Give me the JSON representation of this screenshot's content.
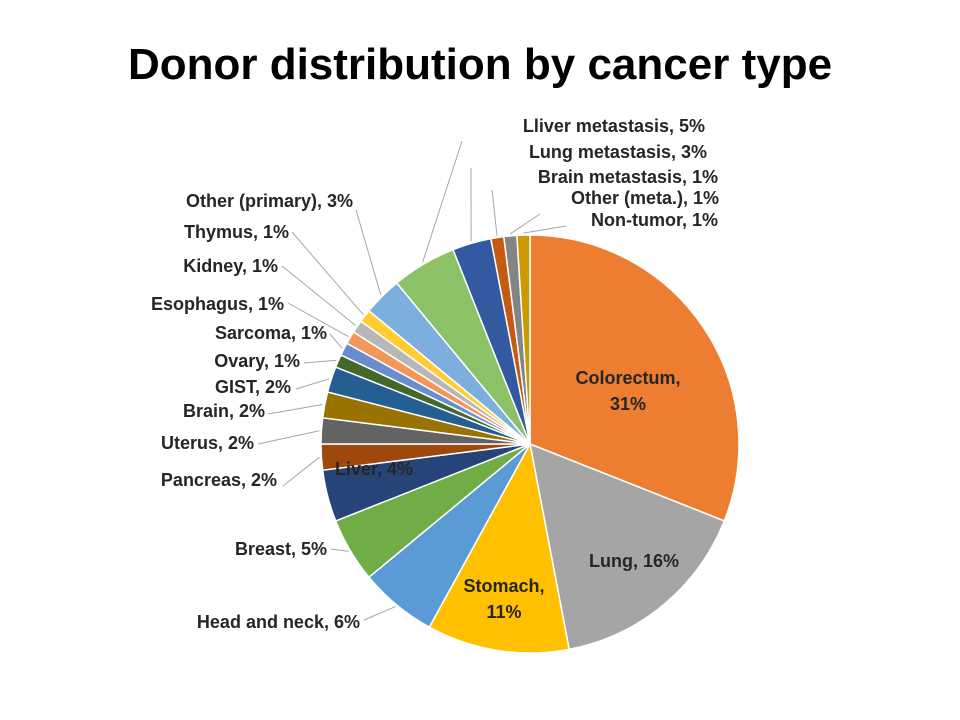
{
  "chart_data": {
    "type": "pie",
    "title": "Donor distribution by cancer type",
    "slices": [
      {
        "name": "Colorectum",
        "value": 31,
        "color": "#ED7D31",
        "label_line1": "Colorectum,",
        "label_line2": "31%"
      },
      {
        "name": "Lung",
        "value": 16,
        "color": "#A5A5A5",
        "label": "Lung, 16%"
      },
      {
        "name": "Stomach",
        "value": 11,
        "color": "#FFC000",
        "label_line1": "Stomach,",
        "label_line2": "11%"
      },
      {
        "name": "Head and neck",
        "value": 6,
        "color": "#5B9BD5",
        "label": "Head and neck, 6%"
      },
      {
        "name": "Breast",
        "value": 5,
        "color": "#70AD47",
        "label": "Breast, 5%"
      },
      {
        "name": "Liver",
        "value": 4,
        "color": "#264478",
        "label": "Liver, 4%"
      },
      {
        "name": "Pancreas",
        "value": 2,
        "color": "#9E480E",
        "label": "Pancreas, 2%"
      },
      {
        "name": "Uterus",
        "value": 2,
        "color": "#636363",
        "label": "Uterus, 2%"
      },
      {
        "name": "Brain",
        "value": 2,
        "color": "#997300",
        "label": "Brain, 2%"
      },
      {
        "name": "GIST",
        "value": 2,
        "color": "#255E91",
        "label": "GIST, 2%"
      },
      {
        "name": "Ovary",
        "value": 1,
        "color": "#43682B",
        "label": "Ovary, 1%"
      },
      {
        "name": "Sarcoma",
        "value": 1,
        "color": "#698ED0",
        "label": "Sarcoma, 1%"
      },
      {
        "name": "Esophagus",
        "value": 1,
        "color": "#F1975A",
        "label": "Esophagus, 1%"
      },
      {
        "name": "Kidney",
        "value": 1,
        "color": "#B7B7B7",
        "label": "Kidney, 1%"
      },
      {
        "name": "Thymus",
        "value": 1,
        "color": "#FFCD33",
        "label": "Thymus, 1%"
      },
      {
        "name": "Other (primary)",
        "value": 3,
        "color": "#7CAFDD",
        "label": "Other (primary), 3%"
      },
      {
        "name": "Lliver metastasis",
        "value": 5,
        "color": "#8CC168",
        "label": "Lliver metastasis, 5%"
      },
      {
        "name": "Lung metastasis",
        "value": 3,
        "color": "#335AA1",
        "label": "Lung metastasis, 3%"
      },
      {
        "name": "Brain metastasis",
        "value": 1,
        "color": "#C55A11",
        "label": "Brain metastasis, 1%"
      },
      {
        "name": "Other (meta.)",
        "value": 1,
        "color": "#848484",
        "label": "Other (meta.), 1%"
      },
      {
        "name": "Non-tumor",
        "value": 1,
        "color": "#CC9A00",
        "label": "Non-tumor, 1%"
      }
    ],
    "start_angle_deg": 0,
    "direction": "clockwise",
    "legend": "none",
    "data_labels": "category-and-percent"
  }
}
